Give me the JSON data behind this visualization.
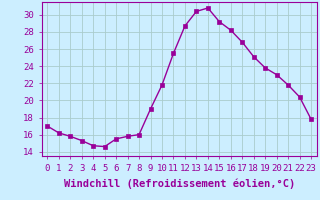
{
  "hours": [
    0,
    1,
    2,
    3,
    4,
    5,
    6,
    7,
    8,
    9,
    10,
    11,
    12,
    13,
    14,
    15,
    16,
    17,
    18,
    19,
    20,
    21,
    22,
    23
  ],
  "values": [
    17.0,
    16.2,
    15.8,
    15.3,
    14.7,
    14.6,
    15.5,
    15.8,
    16.0,
    19.0,
    21.8,
    25.5,
    28.7,
    30.4,
    30.8,
    29.2,
    28.2,
    26.8,
    25.1,
    23.8,
    23.0,
    21.8,
    20.4,
    17.8
  ],
  "ylim": [
    13.5,
    31.5
  ],
  "yticks": [
    14,
    16,
    18,
    20,
    22,
    24,
    26,
    28,
    30
  ],
  "xticks": [
    0,
    1,
    2,
    3,
    4,
    5,
    6,
    7,
    8,
    9,
    10,
    11,
    12,
    13,
    14,
    15,
    16,
    17,
    18,
    19,
    20,
    21,
    22,
    23
  ],
  "xlabel": "Windchill (Refroidissement éolien,°C)",
  "line_color": "#990099",
  "marker": "s",
  "marker_size": 2.5,
  "bg_color": "#cceeff",
  "grid_color": "#aacccc",
  "tick_label_fontsize": 6.5,
  "xlabel_fontsize": 7.5
}
